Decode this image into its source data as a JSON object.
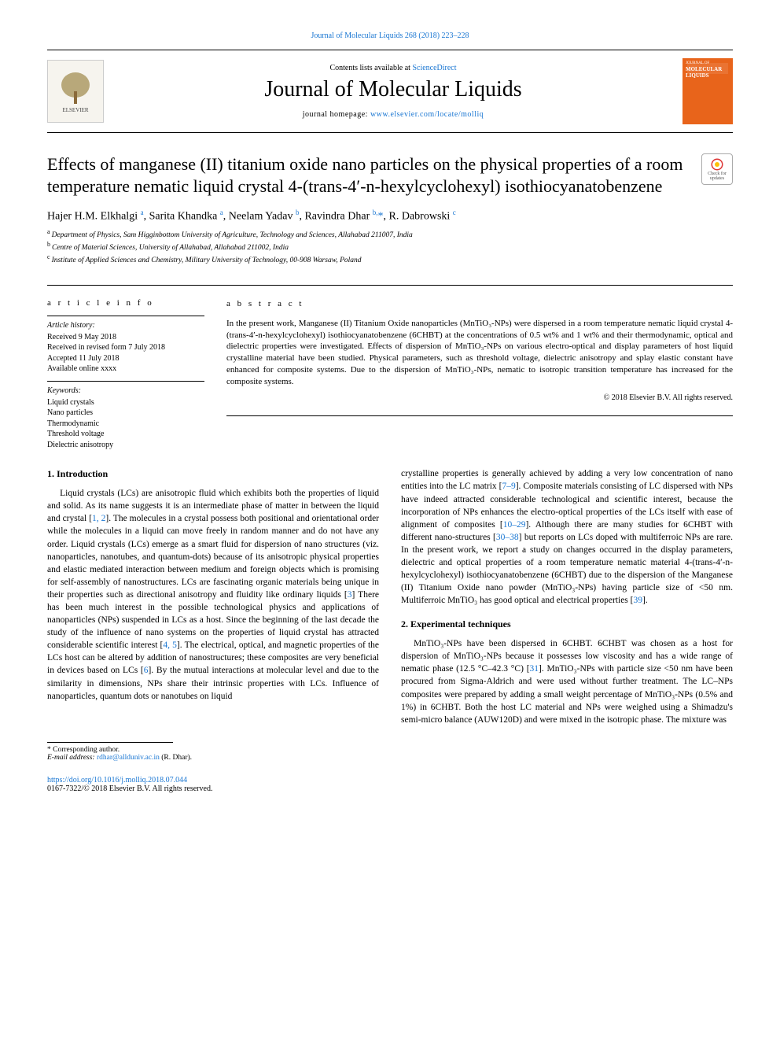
{
  "colors": {
    "link": "#1976d2",
    "text": "#000000",
    "cover_bg": "#e8641b",
    "rule": "#000000"
  },
  "typography": {
    "body_family": "Times New Roman, serif",
    "journal_title_pt": 28,
    "article_title_pt": 22,
    "authors_pt": 14,
    "body_pt": 11.5,
    "small_pt": 10
  },
  "header": {
    "top_citation": "Journal of Molecular Liquids 268 (2018) 223–228",
    "contents_prefix": "Contents lists available at ",
    "contents_link": "ScienceDirect",
    "journal_title": "Journal of Molecular Liquids",
    "homepage_prefix": "journal homepage: ",
    "homepage_url": "www.elsevier.com/locate/molliq",
    "publisher_logo_alt": "ELSEVIER",
    "cover_label_small": "JOURNAL OF",
    "cover_label_big": "MOLECULAR LIQUIDS"
  },
  "updates_badge": {
    "line1": "Check for",
    "line2": "updates"
  },
  "article": {
    "title": "Effects of manganese (II) titanium oxide nano particles on the physical properties of a room temperature nematic liquid crystal 4-(trans-4′-n-hexylcyclohexyl) isothiocyanatobenzene",
    "authors_html": "Hajer H.M. Elkhalgi <sup>a</sup>, Sarita Khandka <sup>a</sup>, Neelam Yadav <sup>b</sup>, Ravindra Dhar <sup>b,</sup><span class='star'>*</span>, R. Dabrowski <sup>c</sup>",
    "affiliations": [
      {
        "key": "a",
        "text": "Department of Physics, Sam Higginbottom University of Agriculture, Technology and Sciences, Allahabad 211007, India"
      },
      {
        "key": "b",
        "text": "Centre of Material Sciences, University of Allahabad, Allahabad 211002, India"
      },
      {
        "key": "c",
        "text": "Institute of Applied Sciences and Chemistry, Military University of Technology, 00-908 Warsaw, Poland"
      }
    ]
  },
  "article_info": {
    "label": "a r t i c l e   i n f o",
    "history_head": "Article history:",
    "history": [
      "Received 9 May 2018",
      "Received in revised form 7 July 2018",
      "Accepted 11 July 2018",
      "Available online xxxx"
    ],
    "keywords_head": "Keywords:",
    "keywords": [
      "Liquid crystals",
      "Nano particles",
      "Thermodynamic",
      "Threshold voltage",
      "Dielectric anisotropy"
    ]
  },
  "abstract": {
    "label": "a b s t r a c t",
    "text": "In the present work, Manganese (II) Titanium Oxide nanoparticles (MnTiO₃-NPs) were dispersed in a room temperature nematic liquid crystal 4-(trans-4′-n-hexylcyclohexyl) isothiocyanatobenzene (6CHBT) at the concentrations of 0.5 wt% and 1 wt% and their thermodynamic, optical and dielectric properties were investigated. Effects of dispersion of MnTiO₃-NPs on various electro-optical and display parameters of host liquid crystalline material have been studied. Physical parameters, such as threshold voltage, dielectric anisotropy and splay elastic constant have enhanced for composite systems. Due to the dispersion of MnTiO₃-NPs, nematic to isotropic transition temperature has increased for the composite systems.",
    "copyright": "© 2018 Elsevier B.V. All rights reserved."
  },
  "sections": {
    "intro_head": "1. Introduction",
    "intro_p1_a": "Liquid crystals (LCs) are anisotropic fluid which exhibits both the properties of liquid and solid. As its name suggests it is an intermediate phase of matter in between the liquid and crystal [",
    "intro_ref1": "1, 2",
    "intro_p1_b": "]. The molecules in a crystal possess both positional and orientational order while the molecules in a liquid can move freely in random manner and do not have any order. Liquid crystals (LCs) emerge as a smart fluid for dispersion of nano structures (viz. nanoparticles, nanotubes, and quantum-dots) because of its anisotropic physical properties and elastic mediated interaction between medium and foreign objects which is promising for self-assembly of nanostructures. LCs are fascinating organic materials being unique in their properties such as directional anisotropy and fluidity like ordinary liquids [",
    "intro_ref2": "3",
    "intro_p1_c": "] There has been much interest in the possible technological physics and applications of nanoparticles (NPs) suspended in LCs as a host. Since the beginning of the last decade the study of the influence of nano systems on the properties of liquid crystal has attracted considerable scientific interest [",
    "intro_ref3": "4, 5",
    "intro_p1_d": "]. The electrical, optical, and magnetic properties of the LCs host can be altered by addition of nanostructures; these composites are very beneficial in devices based on LCs [",
    "intro_ref4": "6",
    "intro_p1_e": "]. By the mutual interactions at molecular level and due to the similarity in dimensions, NPs share their intrinsic properties with LCs. Influence of nanoparticles, quantum dots or nanotubes on liquid",
    "intro_p2_a": "crystalline properties is generally achieved by adding a very low concentration of nano entities into the LC matrix [",
    "intro_ref5": "7–9",
    "intro_p2_b": "]. Composite materials consisting of LC dispersed with NPs have indeed attracted considerable technological and scientific interest, because the incorporation of NPs enhances the electro-optical properties of the LCs itself with ease of alignment of composites [",
    "intro_ref6": "10–29",
    "intro_p2_c": "]. Although there are many studies for 6CHBT with different nano-structures [",
    "intro_ref7": "30–38",
    "intro_p2_d": "] but reports on LCs doped with multiferroic NPs are rare. In the present work, we report a study on changes occurred in the display parameters, dielectric and optical properties of a room temperature nematic material 4-(trans-4′-n-hexylcyclohexyl) isothiocyanatobenzene (6CHBT) due to the dispersion of the Manganese (II) Titanium Oxide nano powder (MnTiO₃-NPs) having particle size of <50 nm. Multiferroic MnTiO₃ has good optical and electrical properties [",
    "intro_ref8": "39",
    "intro_p2_e": "].",
    "exp_head": "2. Experimental techniques",
    "exp_p1_a": "MnTiO₃-NPs have been dispersed in 6CHBT. 6CHBT was chosen as a host for dispersion of MnTiO₃-NPs because it possesses low viscosity and has a wide range of nematic phase (12.5 °C–42.3 °C) [",
    "exp_ref1": "31",
    "exp_p1_b": "]. MnTiO₃-NPs with particle size <50 nm have been procured from Sigma-Aldrich and were used without further treatment. The LC–NPs composites were prepared by adding a small weight percentage of MnTiO₃-NPs (0.5% and 1%) in 6CHBT. Both the host LC material and NPs were weighed using a Shimadzu's semi-micro balance (AUW120D) and were mixed in the isotropic phase. The mixture was"
  },
  "footer": {
    "corr_label": "* Corresponding author.",
    "email_label": "E-mail address: ",
    "email": "rdhar@allduniv.ac.in",
    "email_attr": " (R. Dhar).",
    "doi": "https://doi.org/10.1016/j.molliq.2018.07.044",
    "issn_line": "0167-7322/© 2018 Elsevier B.V. All rights reserved."
  }
}
